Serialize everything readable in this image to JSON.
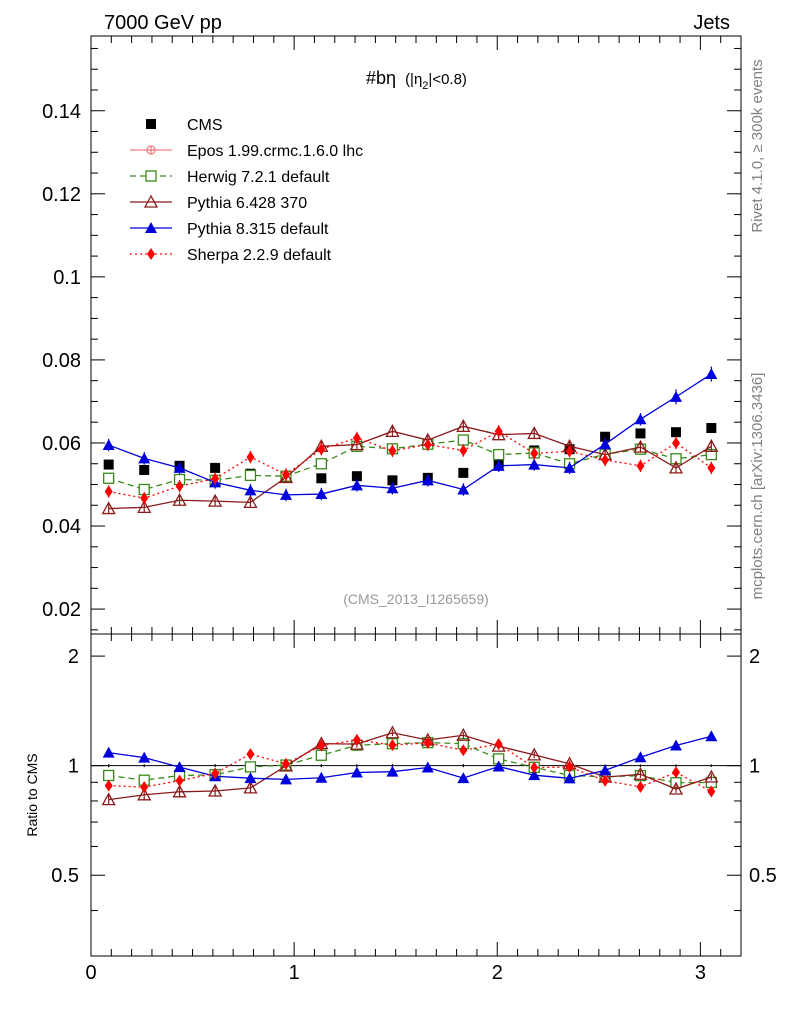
{
  "chart_data": {
    "type": "scatter",
    "header_left": "7000 GeV pp",
    "header_right": "Jets",
    "title_main": "#bη",
    "title_sub": "(|η",
    "title_sub_index": "2",
    "title_sub_end": "|<0.8)",
    "watermark": "(CMS_2013_I1265659)",
    "side_label_top": "Rivet 4.1.0, ≥ 300k events",
    "side_label_bottom": "mcplots.cern.ch [arXiv:1306.3436]",
    "ratio_ylabel": "Ratio to CMS",
    "xlim": [
      0,
      3.2
    ],
    "ylim_main": [
      0.014,
      0.158
    ],
    "ylim_ratio": [
      0.3,
      2.3
    ],
    "x_ticks": [
      0,
      1,
      2,
      3
    ],
    "x_tick_labels": [
      "0",
      "1",
      "2",
      "3"
    ],
    "y_ticks_main": [
      0.02,
      0.04,
      0.06,
      0.08,
      0.1,
      0.12,
      0.14
    ],
    "y_tick_labels_main": [
      "0.02",
      "0.04",
      "0.06",
      "0.08",
      "0.1",
      "0.12",
      "0.14"
    ],
    "y_ticks_ratio": [
      0.5,
      1,
      2
    ],
    "y_tick_labels_ratio": [
      "0.5",
      "1",
      "2"
    ],
    "x": [
      0.087,
      0.262,
      0.436,
      0.611,
      0.785,
      0.96,
      1.134,
      1.309,
      1.484,
      1.658,
      1.833,
      2.007,
      2.182,
      2.356,
      2.531,
      2.705,
      2.88,
      3.054
    ],
    "series": [
      {
        "name": "CMS",
        "color": "#000000",
        "marker": "square",
        "line": "none",
        "values": [
          0.0548,
          0.0535,
          0.0545,
          0.054,
          0.0526,
          0.0518,
          0.0515,
          0.052,
          0.051,
          0.0516,
          0.0528,
          0.0548,
          0.0582,
          0.0585,
          0.0615,
          0.0623,
          0.0626,
          0.0636
        ],
        "errors": [
          0.0005,
          0.0005,
          0.0005,
          0.0005,
          0.0005,
          0.0005,
          0.0005,
          0.0005,
          0.0005,
          0.0005,
          0.0005,
          0.0005,
          0.0005,
          0.0005,
          0.0005,
          0.0005,
          0.0005,
          0.0005
        ]
      },
      {
        "name": "Epos 1.99.crmc.1.6.0 lhc",
        "color": "#f08080",
        "marker": "cross",
        "line": "solid",
        "values": [],
        "errors": []
      },
      {
        "name": "Herwig 7.2.1 default",
        "color": "#3a8a1a",
        "marker": "open-square",
        "line": "dashed",
        "values": [
          0.0515,
          0.0488,
          0.0512,
          0.051,
          0.0522,
          0.052,
          0.055,
          0.0592,
          0.0586,
          0.0597,
          0.0607,
          0.0572,
          0.0576,
          0.055,
          0.0573,
          0.0585,
          0.0562,
          0.0572
        ],
        "errors": [
          0.0012,
          0.0012,
          0.0012,
          0.0012,
          0.0012,
          0.0012,
          0.0012,
          0.0012,
          0.0012,
          0.0012,
          0.0012,
          0.0012,
          0.0012,
          0.0012,
          0.0012,
          0.0012,
          0.0012,
          0.0012
        ]
      },
      {
        "name": "Pythia 6.428 370",
        "color": "#8b1a1a",
        "marker": "open-triangle",
        "line": "solid",
        "values": [
          0.0442,
          0.0445,
          0.0462,
          0.046,
          0.0457,
          0.0517,
          0.0592,
          0.0596,
          0.0628,
          0.0607,
          0.064,
          0.062,
          0.0623,
          0.0592,
          0.0572,
          0.059,
          0.054,
          0.0592
        ],
        "errors": [
          0.0013,
          0.0013,
          0.0013,
          0.0013,
          0.0013,
          0.0013,
          0.0013,
          0.0013,
          0.0013,
          0.0013,
          0.0013,
          0.0013,
          0.0013,
          0.0013,
          0.0013,
          0.0013,
          0.0013,
          0.0013
        ]
      },
      {
        "name": "Pythia 8.315 default",
        "color": "#0000dd",
        "marker": "triangle",
        "line": "solid",
        "values": [
          0.0595,
          0.0563,
          0.054,
          0.0505,
          0.0486,
          0.0475,
          0.0477,
          0.0498,
          0.0491,
          0.051,
          0.0488,
          0.0545,
          0.0548,
          0.054,
          0.0597,
          0.0657,
          0.0711,
          0.0766
        ],
        "errors": [
          0.0015,
          0.0015,
          0.0015,
          0.0015,
          0.0015,
          0.0015,
          0.0015,
          0.0015,
          0.0015,
          0.0015,
          0.0015,
          0.0015,
          0.0015,
          0.0015,
          0.0015,
          0.0015,
          0.0018,
          0.0018
        ]
      },
      {
        "name": "Sherpa 2.2.9 default",
        "color": "#ff0000",
        "marker": "diamond",
        "line": "dotted",
        "values": [
          0.0483,
          0.0467,
          0.0496,
          0.0514,
          0.0566,
          0.0524,
          0.0585,
          0.0612,
          0.0581,
          0.0596,
          0.0582,
          0.0628,
          0.0575,
          0.058,
          0.0559,
          0.0545,
          0.06,
          0.054
        ],
        "errors": [
          0.0015,
          0.0015,
          0.0015,
          0.0015,
          0.0015,
          0.0015,
          0.0015,
          0.0015,
          0.0015,
          0.0015,
          0.0015,
          0.0015,
          0.0015,
          0.0015,
          0.0015,
          0.0015,
          0.0015,
          0.0015
        ]
      }
    ]
  }
}
